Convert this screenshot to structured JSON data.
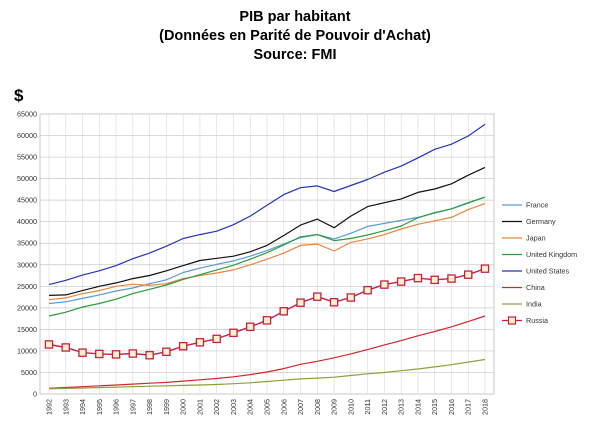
{
  "title": {
    "line1": "PIB par habitant",
    "line2": "(Données en Parité de Pouvoir d'Achat)",
    "line3": "Source: FMI"
  },
  "chart_data": {
    "type": "line",
    "title": "PIB par habitant (Données en Parité de Pouvoir d'Achat) Source: FMI",
    "ylabel": "$",
    "xlabel": "",
    "ylim": [
      0,
      65000
    ],
    "y_ticks": [
      0,
      5000,
      10000,
      15000,
      20000,
      25000,
      30000,
      35000,
      40000,
      45000,
      50000,
      55000,
      60000,
      65000
    ],
    "grid": true,
    "legend_position": "right",
    "x": [
      "1992",
      "1993",
      "1994",
      "1995",
      "1996",
      "1997",
      "1998",
      "1999",
      "2000",
      "2001",
      "2002",
      "2003",
      "2004",
      "2005",
      "2006",
      "2007",
      "2008",
      "2009",
      "2010",
      "2011",
      "2012",
      "2013",
      "2014",
      "2015",
      "2016",
      "2017",
      "2018"
    ],
    "series": [
      {
        "name": "France",
        "color": "#5b9bd5",
        "marker": "none",
        "values": [
          21000,
          21400,
          22200,
          23000,
          23900,
          24600,
          25600,
          26500,
          28200,
          29200,
          30100,
          30900,
          32000,
          33300,
          34800,
          36300,
          37000,
          36000,
          37300,
          38900,
          39600,
          40300,
          41000,
          42000,
          43000,
          44300,
          45700
        ]
      },
      {
        "name": "Germany",
        "color": "#111111",
        "marker": "none",
        "values": [
          22900,
          23000,
          24000,
          25000,
          25800,
          26800,
          27500,
          28600,
          29800,
          31000,
          31500,
          32000,
          33000,
          34500,
          36800,
          39200,
          40600,
          38600,
          41300,
          43500,
          44400,
          45300,
          46800,
          47600,
          48800,
          50800,
          52600
        ]
      },
      {
        "name": "Japan",
        "color": "#e8873a",
        "marker": "none",
        "values": [
          21900,
          22300,
          23300,
          24000,
          25000,
          25500,
          25200,
          25600,
          26800,
          27500,
          28100,
          28800,
          30000,
          31300,
          32700,
          34500,
          34800,
          33200,
          35200,
          36000,
          37000,
          38300,
          39400,
          40200,
          41000,
          42800,
          44200
        ]
      },
      {
        "name": "United Kingdom",
        "color": "#2e9b3e",
        "marker": "none",
        "values": [
          18100,
          19000,
          20200,
          21000,
          22000,
          23300,
          24300,
          25300,
          26600,
          27700,
          28800,
          29900,
          31300,
          32800,
          34600,
          36500,
          37000,
          35600,
          36100,
          36900,
          37900,
          39000,
          40900,
          42100,
          43000,
          44400,
          45700
        ]
      },
      {
        "name": "United States",
        "color": "#2534b5",
        "marker": "none",
        "values": [
          25400,
          26400,
          27600,
          28600,
          29800,
          31400,
          32700,
          34300,
          36100,
          37000,
          37800,
          39300,
          41300,
          43800,
          46300,
          47900,
          48300,
          47000,
          48400,
          49800,
          51500,
          52900,
          54800,
          56800,
          58000,
          59900,
          62600
        ]
      },
      {
        "name": "China",
        "color": "#d6262c",
        "marker": "none",
        "values": [
          1300,
          1500,
          1700,
          1900,
          2100,
          2300,
          2500,
          2700,
          3000,
          3300,
          3600,
          4000,
          4500,
          5100,
          5900,
          6900,
          7600,
          8400,
          9300,
          10300,
          11400,
          12400,
          13500,
          14500,
          15600,
          16800,
          18100
        ]
      },
      {
        "name": "India",
        "color": "#8aa23c",
        "marker": "none",
        "values": [
          1200,
          1300,
          1400,
          1500,
          1600,
          1700,
          1800,
          1900,
          2000,
          2100,
          2200,
          2400,
          2600,
          2900,
          3200,
          3500,
          3700,
          3900,
          4300,
          4700,
          5000,
          5400,
          5800,
          6300,
          6800,
          7400,
          8000
        ]
      },
      {
        "name": "Russia",
        "color": "#c71f49",
        "marker": "square",
        "values": [
          11500,
          10800,
          9600,
          9300,
          9200,
          9400,
          9000,
          9800,
          11100,
          12000,
          12800,
          14200,
          15600,
          17100,
          19200,
          21200,
          22600,
          21300,
          22400,
          24100,
          25400,
          26100,
          26900,
          26500,
          26800,
          27700,
          29100
        ]
      }
    ]
  }
}
